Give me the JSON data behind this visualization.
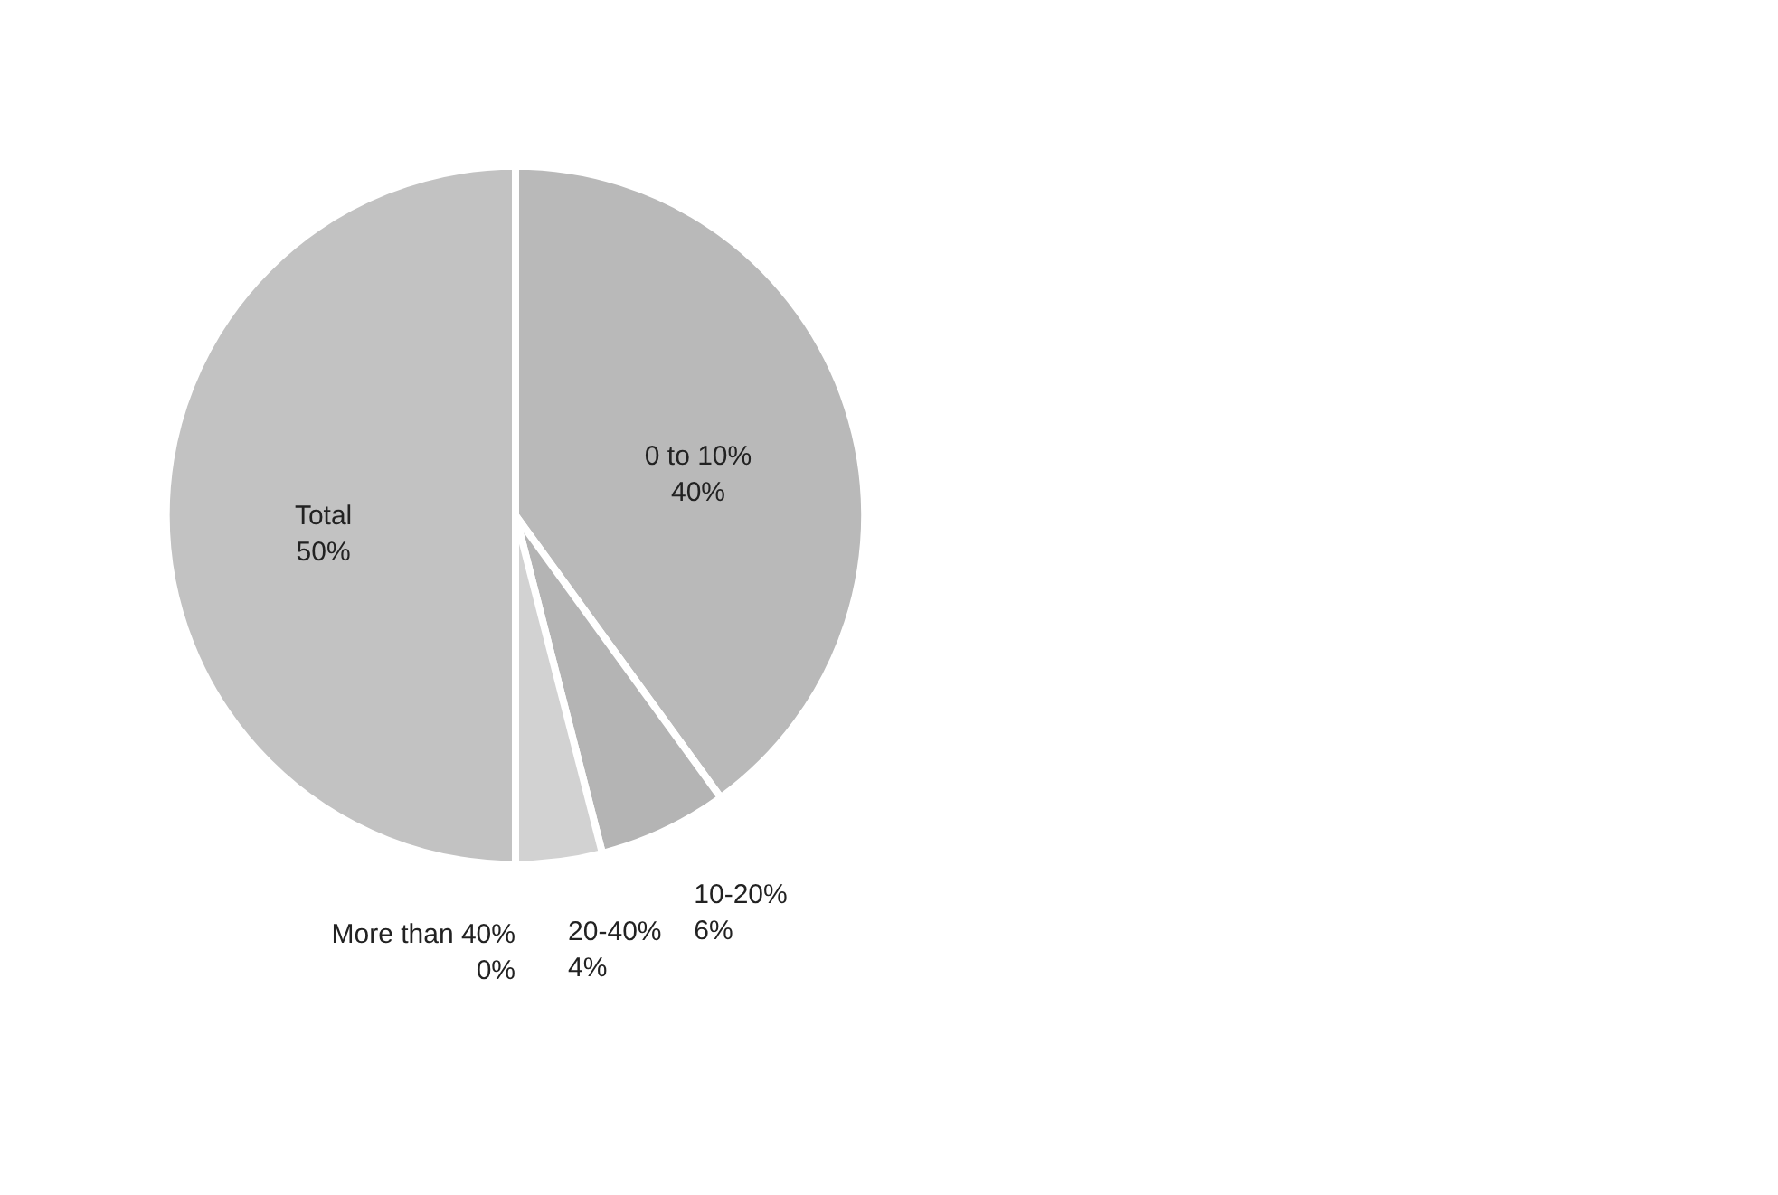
{
  "chart_data": {
    "type": "pie",
    "categories": [
      "0 to 10%",
      "10-20%",
      "20-40%",
      "More than 40%",
      "Total"
    ],
    "values": [
      40,
      6,
      4,
      0,
      50
    ],
    "colors": [
      "#b9b9b9",
      "#b4b4b4",
      "#d2d2d2",
      "#c8c8c8",
      "#c2c2c2"
    ],
    "data_labels": true,
    "value_labels": [
      "40%",
      "6%",
      "4%",
      "0%",
      "50%"
    ],
    "legend": false
  }
}
